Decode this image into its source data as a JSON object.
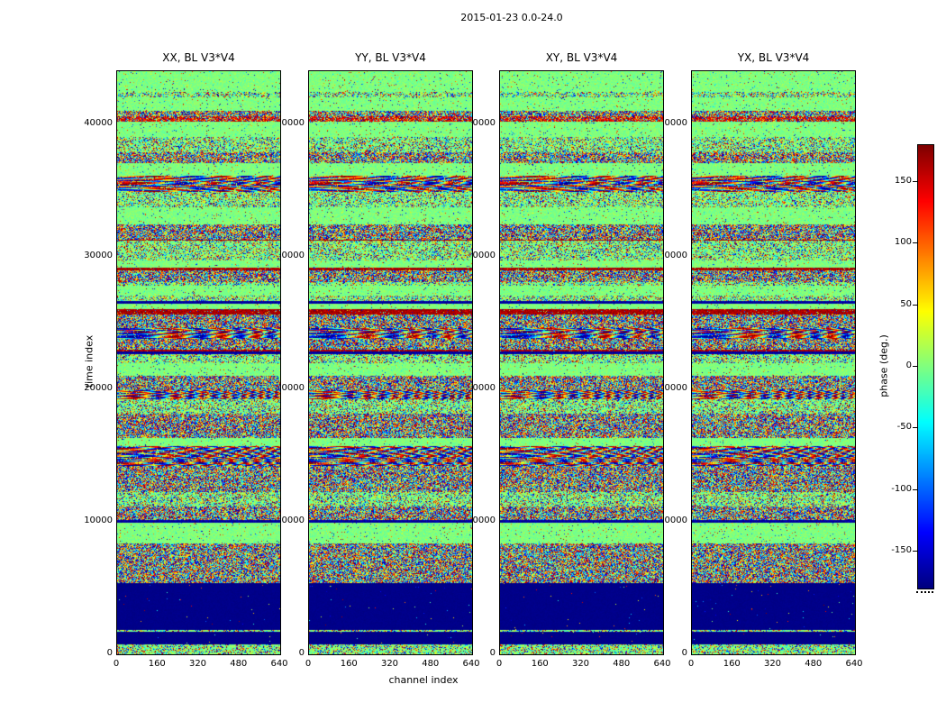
{
  "figure": {
    "title": "2015-01-23 0.0-24.0"
  },
  "axis_labels": {
    "x": "channel index",
    "y": "time index"
  },
  "panels": [
    {
      "title": "XX, BL V3*V4"
    },
    {
      "title": "YY, BL V3*V4"
    },
    {
      "title": "XY, BL V3*V4"
    },
    {
      "title": "YX, BL V3*V4"
    }
  ],
  "axes": {
    "x_ticks": [
      {
        "label": "0",
        "value": 0
      },
      {
        "label": "160",
        "value": 160
      },
      {
        "label": "320",
        "value": 320
      },
      {
        "label": "480",
        "value": 480
      },
      {
        "label": "640",
        "value": 640
      }
    ],
    "y_ticks": [
      {
        "label": "0",
        "value": 0
      },
      {
        "label": "10000",
        "value": 10000
      },
      {
        "label": "20000",
        "value": 20000
      },
      {
        "label": "30000",
        "value": 30000
      },
      {
        "label": "40000",
        "value": 40000
      }
    ],
    "x_max": 640,
    "y_max": 44000
  },
  "colorbar": {
    "label": "phase (deg.)",
    "min": -180,
    "max": 180,
    "colormap": "jet",
    "ticks": [
      {
        "label": "150",
        "value": 150
      },
      {
        "label": "100",
        "value": 100
      },
      {
        "label": "50",
        "value": 50
      },
      {
        "label": "0",
        "value": 0
      },
      {
        "label": "-50",
        "value": -50
      },
      {
        "label": "-100",
        "value": -100
      },
      {
        "label": "-150",
        "value": -150
      }
    ]
  },
  "chart_data": {
    "type": "heatmap",
    "title": "2015-01-23 0.0-24.0",
    "subplots": [
      "XX, BL V3*V4",
      "YY, BL V3*V4",
      "XY, BL V3*V4",
      "YX, BL V3*V4"
    ],
    "xlabel": "channel index",
    "ylabel": "time index",
    "xlim": [
      0,
      640
    ],
    "ylim": [
      0,
      44000
    ],
    "x_ticks": [
      0,
      160,
      320,
      480,
      640
    ],
    "y_ticks": [
      0,
      10000,
      20000,
      30000,
      40000
    ],
    "value_label": "phase (deg.)",
    "value_range": [
      -180,
      180
    ],
    "colormap": "jet",
    "colorbar_ticks": [
      150,
      100,
      50,
      0,
      -50,
      -100,
      -150
    ],
    "features": [
      "horizontally banded random interferometric phase noise spanning the full -180..180 deg range",
      "quiet pale-green bands of near-zero phase, more frequent above time index 25000",
      "solid dark-blue block of -180 deg phase from roughly time 900 to 5200 in all four panels",
      "saturated dark-red rows near time indices 25700 and 29000",
      "red-orange noisy band near time index 40500",
      "chirped sinusoidal phase ripples near time indices 14300 and 35300",
      "the banded time structure repeats across all four polarization panels"
    ]
  }
}
